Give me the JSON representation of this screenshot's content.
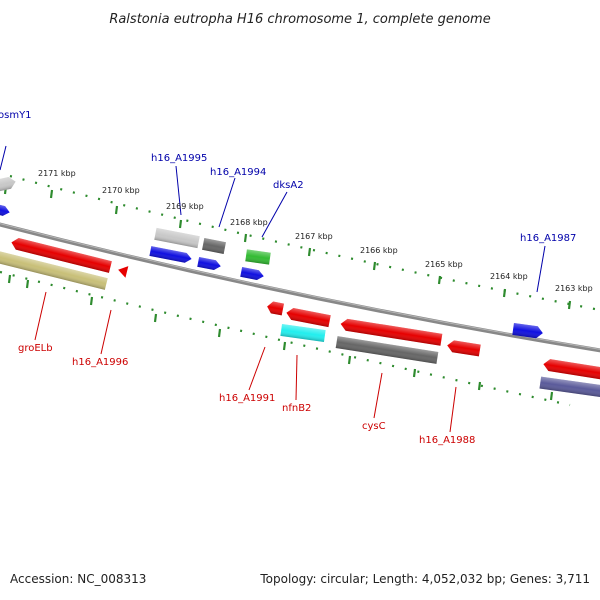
{
  "title": "Ralstonia eutropha H16 chromosome 1, complete genome",
  "footer": {
    "accession": "Accession: NC_008313",
    "topology": "Topology: circular; Length: 4,052,032 bp; Genes: 3,711"
  },
  "colors": {
    "backbone": "#7a7a7a",
    "tick": "#2e8b2e",
    "forward_label": "#0000aa",
    "reverse_label": "#cc0000",
    "red": "#e60000",
    "blue": "#1010e0",
    "gray_light": "#c8c8c8",
    "gray_dark": "#666666",
    "green": "#33bb33",
    "cyan": "#22eeee",
    "olive": "#c8bf78",
    "navy": "#5a5a9a"
  },
  "scale_ticks": [
    "2171 kbp",
    "2170 kbp",
    "2169 kbp",
    "2168 kbp",
    "2167 kbp",
    "2166 kbp",
    "2165 kbp",
    "2164 kbp",
    "2163 kbp"
  ],
  "gene_labels": {
    "forward": [
      "osmY1",
      "h16_A1995",
      "h16_A1994",
      "dksA2",
      "h16_A1987"
    ],
    "reverse": [
      "groELb",
      "h16_A1996",
      "h16_A1991",
      "nfnB2",
      "cysC",
      "h16_A1988"
    ]
  },
  "features": [
    {
      "name": "osmY1-gene",
      "strand": "forward",
      "color": "gray_light",
      "direction": "right"
    },
    {
      "name": "forward-gene-left-edge",
      "strand": "forward",
      "color": "blue",
      "direction": "right"
    },
    {
      "name": "h16_A1995-gene",
      "strand": "forward",
      "color": "gray_light",
      "direction": "right"
    },
    {
      "name": "forward-gene-blue",
      "strand": "forward",
      "color": "blue",
      "direction": "right"
    },
    {
      "name": "h16_A1994-gene",
      "strand": "forward",
      "color": "gray_dark",
      "direction": "right"
    },
    {
      "name": "forward-gene-blue-small",
      "strand": "forward",
      "color": "blue",
      "direction": "right"
    },
    {
      "name": "dksA2-gene",
      "strand": "forward",
      "color": "green",
      "direction": "right"
    },
    {
      "name": "forward-gene-blue-2",
      "strand": "forward",
      "color": "blue",
      "direction": "right"
    },
    {
      "name": "h16_A1987-gene",
      "strand": "forward",
      "color": "blue",
      "direction": "right"
    },
    {
      "name": "h16_A1996-gene",
      "strand": "reverse",
      "color": "red",
      "direction": "left"
    },
    {
      "name": "groELb-gene",
      "strand": "reverse",
      "color": "olive",
      "direction": "left"
    },
    {
      "name": "reverse-gene-small-red",
      "strand": "reverse",
      "color": "red",
      "direction": "left"
    },
    {
      "name": "h16_A1991-gene",
      "strand": "reverse",
      "color": "red",
      "direction": "left"
    },
    {
      "name": "reverse-gene-red",
      "strand": "reverse",
      "color": "red",
      "direction": "left"
    },
    {
      "name": "nfnB2-gene",
      "strand": "reverse",
      "color": "cyan",
      "direction": "left"
    },
    {
      "name": "reverse-gene-red-long",
      "strand": "reverse",
      "color": "red",
      "direction": "left"
    },
    {
      "name": "cysC-gene",
      "strand": "reverse",
      "color": "gray_dark",
      "direction": "left"
    },
    {
      "name": "h16_A1988-gene",
      "strand": "reverse",
      "color": "red",
      "direction": "left"
    },
    {
      "name": "reverse-gene-red-right",
      "strand": "reverse",
      "color": "red",
      "direction": "left"
    },
    {
      "name": "reverse-gene-navy",
      "strand": "reverse",
      "color": "navy",
      "direction": "left"
    }
  ]
}
